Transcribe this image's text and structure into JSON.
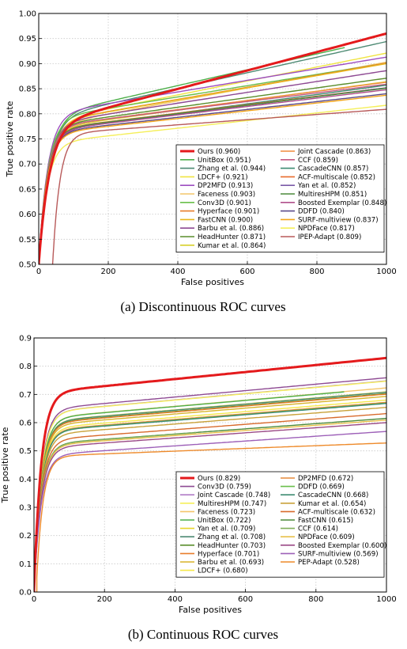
{
  "chart_data": [
    {
      "type": "line",
      "caption": "(a)  Discontinuous ROC curves",
      "xlabel": "False positives",
      "ylabel": "True positive rate",
      "xlim": [
        0,
        1000
      ],
      "ylim": [
        0.5,
        1.0
      ],
      "xticks": [
        0,
        200,
        400,
        600,
        800,
        1000
      ],
      "yticks": [
        0.5,
        0.55,
        0.6,
        0.65,
        0.7,
        0.75,
        0.8,
        0.85,
        0.9,
        0.95,
        1.0
      ],
      "ytick_labels": [
        "0.50",
        "0.55",
        "0.60",
        "0.65",
        "0.70",
        "0.75",
        "0.80",
        "0.85",
        "0.90",
        "0.95",
        "1.00"
      ],
      "grid": true,
      "legend_position": "bottom-right",
      "series": [
        {
          "name": "Ours (0.960)",
          "final": 0.96,
          "start_fp": 0,
          "shape": 0.6,
          "thick": true,
          "color": "#e41a1c"
        },
        {
          "name": "UnitBox (0.951)",
          "final": 0.951,
          "start_fp": 0,
          "shape": 0.65,
          "end_fp": 880,
          "color": "#4daf4a"
        },
        {
          "name": "Zhang et al. (0.944)",
          "final": 0.944,
          "start_fp": 0,
          "shape": 0.65,
          "color": "#4d8a73"
        },
        {
          "name": "LDCF+ (0.921)",
          "final": 0.921,
          "start_fp": 0,
          "shape": 0.67,
          "color": "#f0e442"
        },
        {
          "name": "DP2MFD (0.913)",
          "final": 0.913,
          "start_fp": 0,
          "shape": 0.72,
          "color": "#9d4ec0"
        },
        {
          "name": "Faceness (0.903)",
          "final": 0.903,
          "start_fp": 0,
          "shape": 0.68,
          "color": "#f4c56a"
        },
        {
          "name": "Conv3D (0.901)",
          "final": 0.901,
          "start_fp": 0,
          "shape": 0.72,
          "color": "#6abf4b"
        },
        {
          "name": "Hyperface (0.901)",
          "final": 0.901,
          "start_fp": 0,
          "shape": 0.7,
          "color": "#e87d2b"
        },
        {
          "name": "FastCNN (0.900)",
          "final": 0.9,
          "start_fp": 0,
          "shape": 0.7,
          "color": "#e8b71c"
        },
        {
          "name": "Barbu et al. (0.886)",
          "final": 0.886,
          "start_fp": 0,
          "shape": 0.72,
          "color": "#8e4a93"
        },
        {
          "name": "HeadHunter (0.871)",
          "final": 0.871,
          "start_fp": 0,
          "shape": 0.74,
          "color": "#5a8e2c"
        },
        {
          "name": "Kumar et al. (0.864)",
          "final": 0.864,
          "start_fp": 0,
          "shape": 0.74,
          "color": "#d8d02a"
        },
        {
          "name": "Joint Cascade (0.863)",
          "final": 0.863,
          "start_fp": 0,
          "shape": 0.75,
          "color": "#f08a3c"
        },
        {
          "name": "CCF (0.859)",
          "final": 0.859,
          "start_fp": 0,
          "shape": 0.76,
          "color": "#c45a83"
        },
        {
          "name": "CascadeCNN (0.857)",
          "final": 0.857,
          "start_fp": 0,
          "shape": 0.74,
          "color": "#3d8c72"
        },
        {
          "name": "ACF-multiscale (0.852)",
          "final": 0.852,
          "start_fp": 0,
          "shape": 0.76,
          "color": "#e86b2c"
        },
        {
          "name": "Yan et al. (0.852)",
          "final": 0.852,
          "start_fp": 0,
          "shape": 0.75,
          "color": "#7a5aa8"
        },
        {
          "name": "MultiresHPM (0.851)",
          "final": 0.851,
          "start_fp": 0,
          "shape": 0.76,
          "color": "#4c8a3a"
        },
        {
          "name": "Boosted Exemplar (0.848)",
          "final": 0.848,
          "start_fp": 0,
          "shape": 0.76,
          "color": "#b0508c"
        },
        {
          "name": "DDFD (0.840)",
          "final": 0.84,
          "start_fp": 0,
          "shape": 0.77,
          "color": "#5b4a8a"
        },
        {
          "name": "SURF-multiview (0.837)",
          "final": 0.837,
          "start_fp": 0,
          "shape": 0.77,
          "color": "#f2a51a"
        },
        {
          "name": "NPDFace (0.817)",
          "final": 0.817,
          "start_fp": 0,
          "shape": 0.76,
          "color": "#f5ef5a"
        },
        {
          "name": "IPEP-Adapt (0.809)",
          "final": 0.809,
          "start_fp": 40,
          "start_tpr": 0.5,
          "shape": 0.84,
          "color": "#b85a5a"
        }
      ]
    },
    {
      "type": "line",
      "caption": "(b)  Continuous ROC curves",
      "xlabel": "False positives",
      "ylabel": "True positive rate",
      "xlim": [
        0,
        1000
      ],
      "ylim": [
        0.0,
        0.9
      ],
      "xticks": [
        0,
        200,
        400,
        600,
        800,
        1000
      ],
      "yticks": [
        0.0,
        0.1,
        0.2,
        0.3,
        0.4,
        0.5,
        0.6,
        0.7,
        0.8,
        0.9
      ],
      "ytick_labels": [
        "0.0",
        "0.1",
        "0.2",
        "0.3",
        "0.4",
        "0.5",
        "0.6",
        "0.7",
        "0.8",
        "0.9"
      ],
      "grid": true,
      "legend_position": "bottom-right",
      "series": [
        {
          "name": "Ours (0.829)",
          "final": 0.829,
          "start_fp": 0,
          "shape": 0.85,
          "thick": true,
          "color": "#e41a1c"
        },
        {
          "name": "Conv3D (0.759)",
          "final": 0.759,
          "start_fp": 0,
          "shape": 0.85,
          "color": "#8e4a93"
        },
        {
          "name": "Joint Cascade (0.748)",
          "final": 0.748,
          "start_fp": 0,
          "shape": 0.85,
          "color": "#b07cc6"
        },
        {
          "name": "MultiresHPM (0.747)",
          "final": 0.747,
          "start_fp": 0,
          "shape": 0.85,
          "color": "#f5ef5a"
        },
        {
          "name": "Faceness (0.723)",
          "final": 0.723,
          "start_fp": 0,
          "shape": 0.85,
          "color": "#f4c56a"
        },
        {
          "name": "UnitBox (0.722)",
          "final": 0.722,
          "start_fp": 0,
          "shape": 0.85,
          "end_fp": 880,
          "color": "#4daf4a"
        },
        {
          "name": "Yan et al. (0.709)",
          "final": 0.709,
          "start_fp": 0,
          "shape": 0.85,
          "color": "#e8d52c"
        },
        {
          "name": "Zhang et al. (0.708)",
          "final": 0.708,
          "start_fp": 0,
          "shape": 0.85,
          "color": "#4d8a73"
        },
        {
          "name": "HeadHunter (0.703)",
          "final": 0.703,
          "start_fp": 0,
          "shape": 0.85,
          "color": "#5a8e2c"
        },
        {
          "name": "Hyperface (0.701)",
          "final": 0.701,
          "start_fp": 0,
          "shape": 0.85,
          "color": "#e87d2b"
        },
        {
          "name": "Barbu et al. (0.693)",
          "final": 0.693,
          "start_fp": 0,
          "shape": 0.85,
          "color": "#d8b42a"
        },
        {
          "name": "LDCF+ (0.680)",
          "final": 0.68,
          "start_fp": 0,
          "shape": 0.85,
          "color": "#f5e84a"
        },
        {
          "name": "DP2MFD (0.672)",
          "final": 0.672,
          "start_fp": 0,
          "shape": 0.85,
          "color": "#e58a3a"
        },
        {
          "name": "DDFD (0.669)",
          "final": 0.669,
          "start_fp": 0,
          "shape": 0.85,
          "color": "#6abf4b"
        },
        {
          "name": "CascadeCNN (0.668)",
          "final": 0.668,
          "start_fp": 0,
          "shape": 0.85,
          "color": "#3d8c72"
        },
        {
          "name": "Kumar et al. (0.654)",
          "final": 0.654,
          "start_fp": 0,
          "shape": 0.85,
          "color": "#c9a23a"
        },
        {
          "name": "ACF-multiscale (0.632)",
          "final": 0.632,
          "start_fp": 0,
          "shape": 0.85,
          "color": "#d86a2c"
        },
        {
          "name": "FastCNN (0.615)",
          "final": 0.615,
          "start_fp": 0,
          "shape": 0.85,
          "color": "#4c8a3a"
        },
        {
          "name": "CCF (0.614)",
          "final": 0.614,
          "start_fp": 0,
          "shape": 0.85,
          "end_fp": 460,
          "color": "#7fae5a"
        },
        {
          "name": "NPDFace (0.609)",
          "final": 0.609,
          "start_fp": 0,
          "shape": 0.85,
          "color": "#e8c04a"
        },
        {
          "name": "Boosted Exemplar (0.600)",
          "final": 0.6,
          "start_fp": 0,
          "shape": 0.85,
          "color": "#9a4a86"
        },
        {
          "name": "SURF-multiview (0.569)",
          "final": 0.569,
          "start_fp": 0,
          "shape": 0.85,
          "color": "#9d60b8"
        },
        {
          "name": "PEP-Adapt (0.528)",
          "final": 0.528,
          "start_fp": 8,
          "start_tpr": 0.05,
          "shape": 0.9,
          "color": "#ee8a2a"
        }
      ]
    }
  ]
}
